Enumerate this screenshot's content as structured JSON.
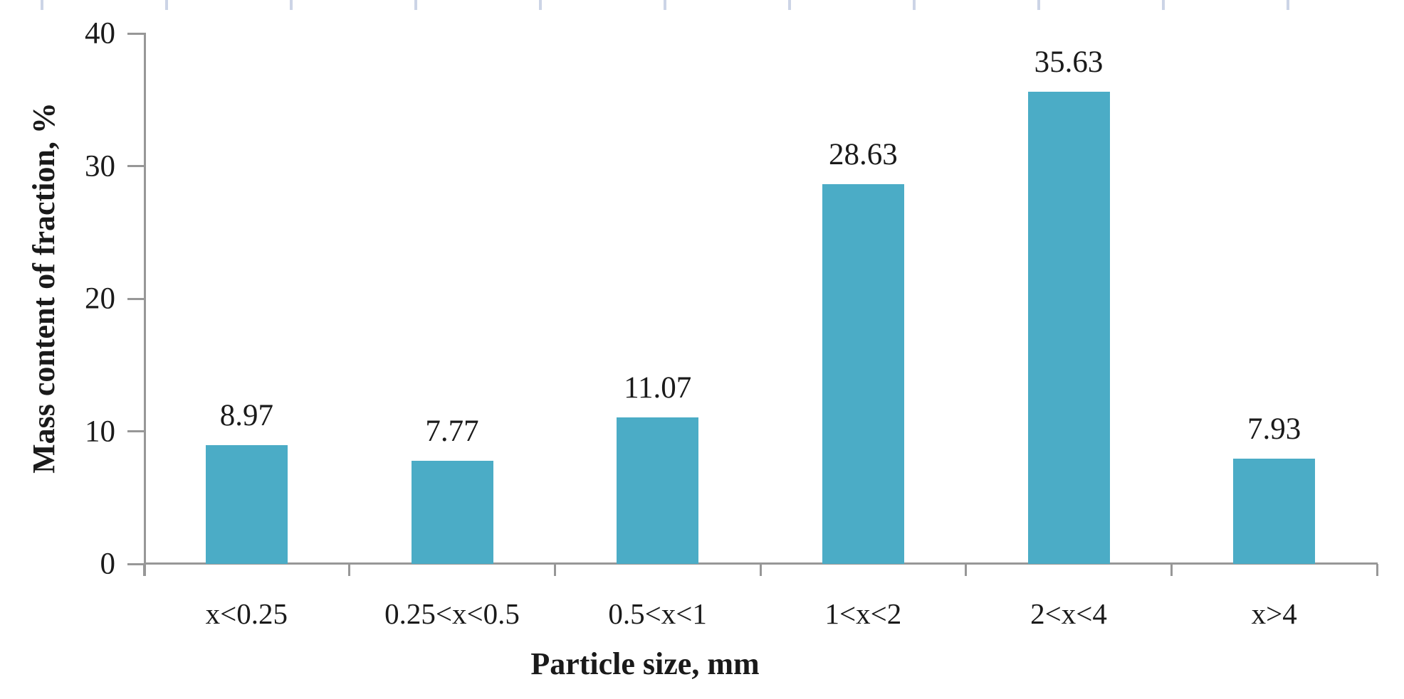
{
  "chart_data": {
    "type": "bar",
    "categories": [
      "x<0.25",
      "0.25<x<0.5",
      "0.5<x<1",
      "1<x<2",
      "2<x<4",
      "x>4"
    ],
    "values": [
      8.97,
      7.77,
      11.07,
      28.63,
      35.63,
      7.93
    ],
    "value_labels": [
      "8.97",
      "7.77",
      "11.07",
      "28.63",
      "35.63",
      "7.93"
    ],
    "title": "",
    "xlabel": "Particle size, mm",
    "ylabel": "Mass content of fraction, %",
    "ylim": [
      0,
      40
    ],
    "yticks": [
      0,
      10,
      20,
      30,
      40
    ],
    "grid": false,
    "legend": "none",
    "colors": {
      "bar": "#4BACC6",
      "axis": "#979797",
      "text": "#1a1a1a",
      "ruler_tick": "#ccd4e6"
    }
  }
}
